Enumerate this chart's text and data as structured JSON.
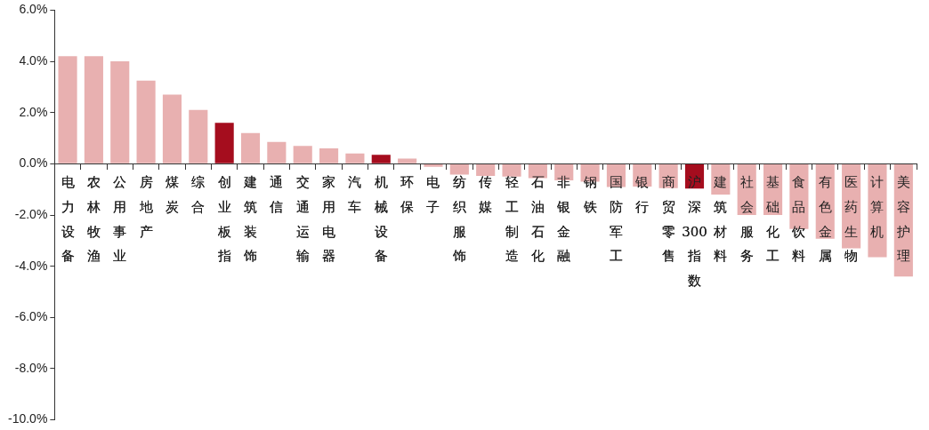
{
  "chart_data": {
    "type": "bar",
    "categories": [
      "电力设备",
      "农林牧渔",
      "公用事业",
      "房地产",
      "煤炭",
      "综合",
      "创业板指",
      "建筑装饰",
      "通信",
      "交通运输",
      "家用电器",
      "汽车",
      "机械设备",
      "环保",
      "电子",
      "纺织服饰",
      "传媒",
      "轻工制造",
      "石油石化",
      "非银金融",
      "钢铁",
      "国防军工",
      "银行",
      "商贸零售",
      "沪深300指数",
      "建筑材料",
      "社会服务",
      "基础化工",
      "食品饮料",
      "有色金属",
      "医药生物",
      "计算机",
      "美容护理"
    ],
    "values": [
      4.2,
      4.2,
      4.0,
      3.25,
      2.7,
      2.1,
      1.6,
      1.2,
      0.85,
      0.7,
      0.6,
      0.4,
      0.35,
      0.2,
      -0.12,
      -0.42,
      -0.47,
      -0.5,
      -0.56,
      -0.65,
      -0.7,
      -0.91,
      -0.89,
      -0.95,
      -0.97,
      -1.2,
      -2.0,
      -2.0,
      -2.55,
      -2.93,
      -3.3,
      -3.65,
      -4.4
    ],
    "colors": [
      "#e8b0b0",
      "#e8b0b0",
      "#e8b0b0",
      "#e8b0b0",
      "#e8b0b0",
      "#e8b0b0",
      "#a50d1e",
      "#e8b0b0",
      "#e8b0b0",
      "#e8b0b0",
      "#e8b0b0",
      "#e8b0b0",
      "#a50d1e",
      "#e8b0b0",
      "#e8b0b0",
      "#e8b0b0",
      "#e8b0b0",
      "#e8b0b0",
      "#e8b0b0",
      "#e8b0b0",
      "#e8b0b0",
      "#e8b0b0",
      "#e8b0b0",
      "#e8b0b0",
      "#a50d1e",
      "#e8b0b0",
      "#e8b0b0",
      "#e8b0b0",
      "#e8b0b0",
      "#e8b0b0",
      "#e8b0b0",
      "#e8b0b0",
      "#e8b0b0"
    ],
    "ylim": [
      -10,
      6
    ],
    "yticks": [
      {
        "value": -10,
        "label": "-10.0%"
      },
      {
        "value": -8,
        "label": "-8.0%"
      },
      {
        "value": -6,
        "label": "-6.0%"
      },
      {
        "value": -4,
        "label": "-4.0%"
      },
      {
        "value": -2,
        "label": "-2.0%"
      },
      {
        "value": 0,
        "label": "0.0%"
      },
      {
        "value": 2,
        "label": "2.0%"
      },
      {
        "value": 4,
        "label": "4.0%"
      },
      {
        "value": 6,
        "label": "6.0%"
      }
    ],
    "grid": false,
    "legend": false
  }
}
